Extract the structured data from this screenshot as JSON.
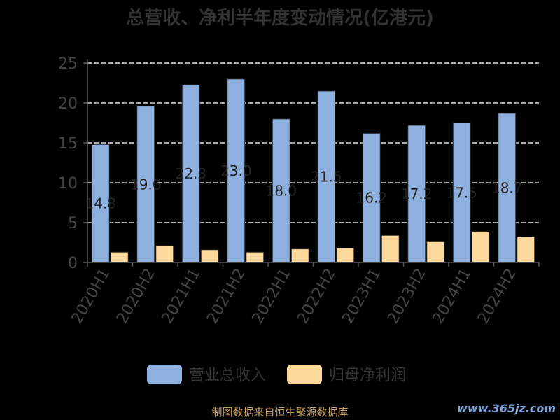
{
  "chart_data": {
    "type": "bar",
    "title": "总营收、净利半年度变动情况(亿港元)",
    "categories": [
      "2020H1",
      "2020H2",
      "2021H1",
      "2021H2",
      "2022H1",
      "2022H2",
      "2023H1",
      "2023H2",
      "2024H1",
      "2024H2"
    ],
    "series": [
      {
        "name": "营业总收入",
        "color": "#8eb0de",
        "values": [
          14.8,
          19.6,
          22.3,
          23.0,
          18.0,
          21.5,
          16.2,
          17.2,
          17.5,
          18.7
        ],
        "labels": [
          "14.8",
          "19.6",
          "22.3",
          "23.0",
          "18.0",
          "21.5",
          "16.2",
          "17.2",
          "17.5",
          "18.7"
        ]
      },
      {
        "name": "归母净利润",
        "color": "#fcd89a",
        "values": [
          1.3,
          2.1,
          1.6,
          1.3,
          1.7,
          1.8,
          3.4,
          2.6,
          3.9,
          3.2
        ]
      }
    ],
    "yticks": [
      0,
      5,
      10,
      15,
      20,
      25
    ],
    "ylim": [
      0,
      25
    ],
    "grid": true,
    "legend_position": "bottom"
  },
  "footer": {
    "source": "制图数据来自恒生聚源数据库",
    "watermark": "www.365jz.com"
  }
}
